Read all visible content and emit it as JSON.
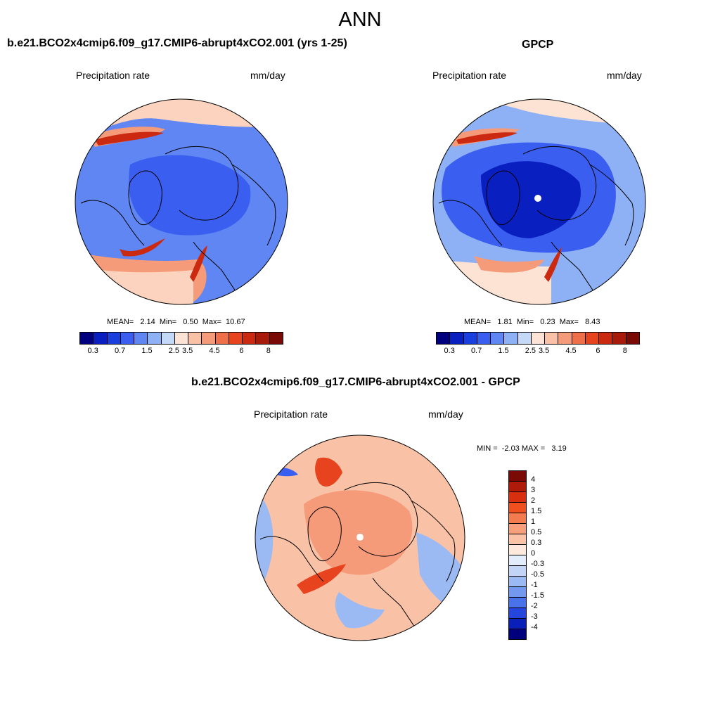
{
  "main_title": "ANN",
  "panels": [
    {
      "title": "b.e21.BCO2x4cmip6.f09_g17.CMIP6-abrupt4xCO2.001 (yrs 1-25)",
      "variable": "Precipitation rate",
      "units": "mm/day",
      "stats": "MEAN=   2.14  Min=   0.50  Max=  10.67",
      "colorbar": {
        "ticks": [
          "0.3",
          "0.7",
          "1.5",
          "2.5",
          "3.5",
          "4.5",
          "6",
          "8"
        ],
        "colors": [
          "#00007f",
          "#0a1fbf",
          "#1a3fdf",
          "#3a5ff0",
          "#5f86f2",
          "#8eb0f5",
          "#c4d8f8",
          "#fde3d4",
          "#f9c2a6",
          "#f59b79",
          "#f06f4b",
          "#e8431f",
          "#cc2a10",
          "#a81a0a",
          "#7a0a05"
        ]
      }
    },
    {
      "title": "GPCP",
      "variable": "Precipitation rate",
      "units": "mm/day",
      "stats": "MEAN=   1.81  Min=   0.23  Max=   8.43",
      "colorbar": {
        "ticks": [
          "0.3",
          "0.7",
          "1.5",
          "2.5",
          "3.5",
          "4.5",
          "6",
          "8"
        ],
        "colors": [
          "#00007f",
          "#0a1fbf",
          "#1a3fdf",
          "#3a5ff0",
          "#5f86f2",
          "#8eb0f5",
          "#c4d8f8",
          "#fde3d4",
          "#f9c2a6",
          "#f59b79",
          "#f06f4b",
          "#e8431f",
          "#cc2a10",
          "#a81a0a",
          "#7a0a05"
        ]
      }
    },
    {
      "title": "b.e21.BCO2x4cmip6.f09_g17.CMIP6-abrupt4xCO2.001 - GPCP",
      "variable": "Precipitation rate",
      "units": "mm/day",
      "stats": "MIN =  -2.03 MAX =   3.19",
      "colorbar": {
        "ticks": [
          "4",
          "3",
          "2",
          "1.5",
          "1",
          "0.5",
          "0.3",
          "0",
          "-0.3",
          "-0.5",
          "-1",
          "-1.5",
          "-2",
          "-3",
          "-4"
        ],
        "colors": [
          "#7a0a05",
          "#b01a0a",
          "#d8300f",
          "#f0501f",
          "#f47a4f",
          "#f79f7c",
          "#fac3a8",
          "#fde8dc",
          "#e3ecfb",
          "#c2d5f7",
          "#9bb9f3",
          "#7498ef",
          "#4a72ea",
          "#2446dc",
          "#0a1fb8",
          "#00007f"
        ]
      }
    }
  ],
  "fills": {
    "map1_base": "#5f86f2",
    "map1_center": "#3a5ff0",
    "map1_warm": "#f59b79",
    "map1_peak": "#cc2a10",
    "map1_light": "#fbd3be",
    "map2_base": "#8eb0f5",
    "map2_center": "#0a1fbf",
    "map2_mid": "#3a5ff0",
    "map2_warm": "#f59b79",
    "map2_peak": "#cc2a10",
    "map2_light": "#fde3d4",
    "map3_base": "#f9c2a6",
    "map3_center": "#f59b79",
    "map3_peak": "#e8431f",
    "map3_cool": "#9bb9f3",
    "map3_deep": "#3a5ff0"
  }
}
